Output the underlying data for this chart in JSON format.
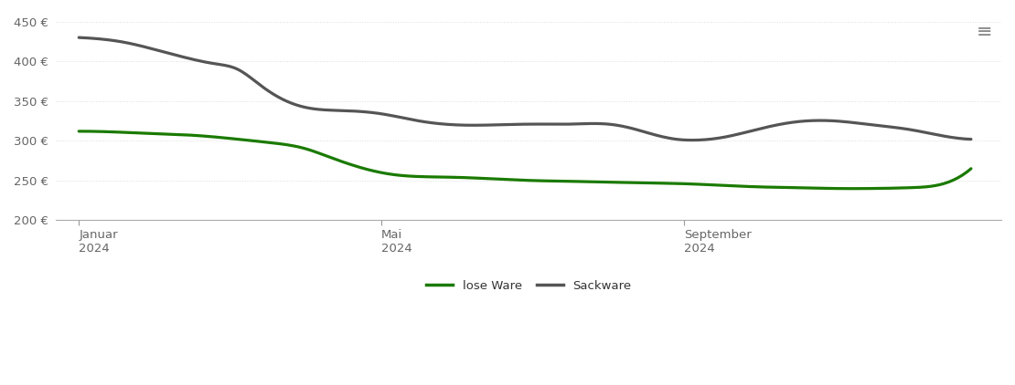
{
  "background_color": "#ffffff",
  "grid_color": "#dddddd",
  "ylim": [
    200,
    460
  ],
  "yticks": [
    200,
    250,
    300,
    350,
    400,
    450
  ],
  "x_tick_positions": [
    0,
    4,
    8
  ],
  "x_tick_labels": [
    "Januar\n2024",
    "Mai\n2024",
    "September\n2024"
  ],
  "xlim": [
    -0.3,
    12.2
  ],
  "lose_ware_color": "#1a7a00",
  "sackware_color": "#555555",
  "line_width": 2.3,
  "legend_labels": [
    "lose Ware",
    "Sackware"
  ],
  "lose_ware_x": [
    0,
    0.5,
    1.0,
    1.5,
    2.0,
    2.5,
    3.0,
    3.3,
    3.6,
    3.9,
    4.2,
    4.5,
    5.0,
    5.5,
    6.0,
    6.5,
    7.0,
    7.5,
    8.0,
    8.5,
    9.0,
    9.5,
    10.0,
    10.5,
    11.0,
    11.5,
    11.8
  ],
  "lose_ware_y": [
    312,
    311,
    309,
    307,
    303,
    298,
    290,
    280,
    270,
    262,
    257,
    255,
    254,
    252,
    250,
    249,
    248,
    247,
    246,
    244,
    242,
    241,
    240,
    240,
    241,
    248,
    265
  ],
  "sackware_x": [
    0,
    0.3,
    0.6,
    1.0,
    1.4,
    1.8,
    2.1,
    2.4,
    2.7,
    3.0,
    3.5,
    4.0,
    4.5,
    5.0,
    5.5,
    6.0,
    6.5,
    7.0,
    7.3,
    7.6,
    7.9,
    8.2,
    8.5,
    9.0,
    9.5,
    10.0,
    10.5,
    11.0,
    11.5,
    11.8
  ],
  "sackware_y": [
    430,
    428,
    424,
    415,
    405,
    397,
    390,
    370,
    352,
    342,
    338,
    334,
    325,
    320,
    320,
    321,
    321,
    321,
    316,
    308,
    302,
    301,
    304,
    315,
    324,
    325,
    320,
    314,
    305,
    302
  ]
}
